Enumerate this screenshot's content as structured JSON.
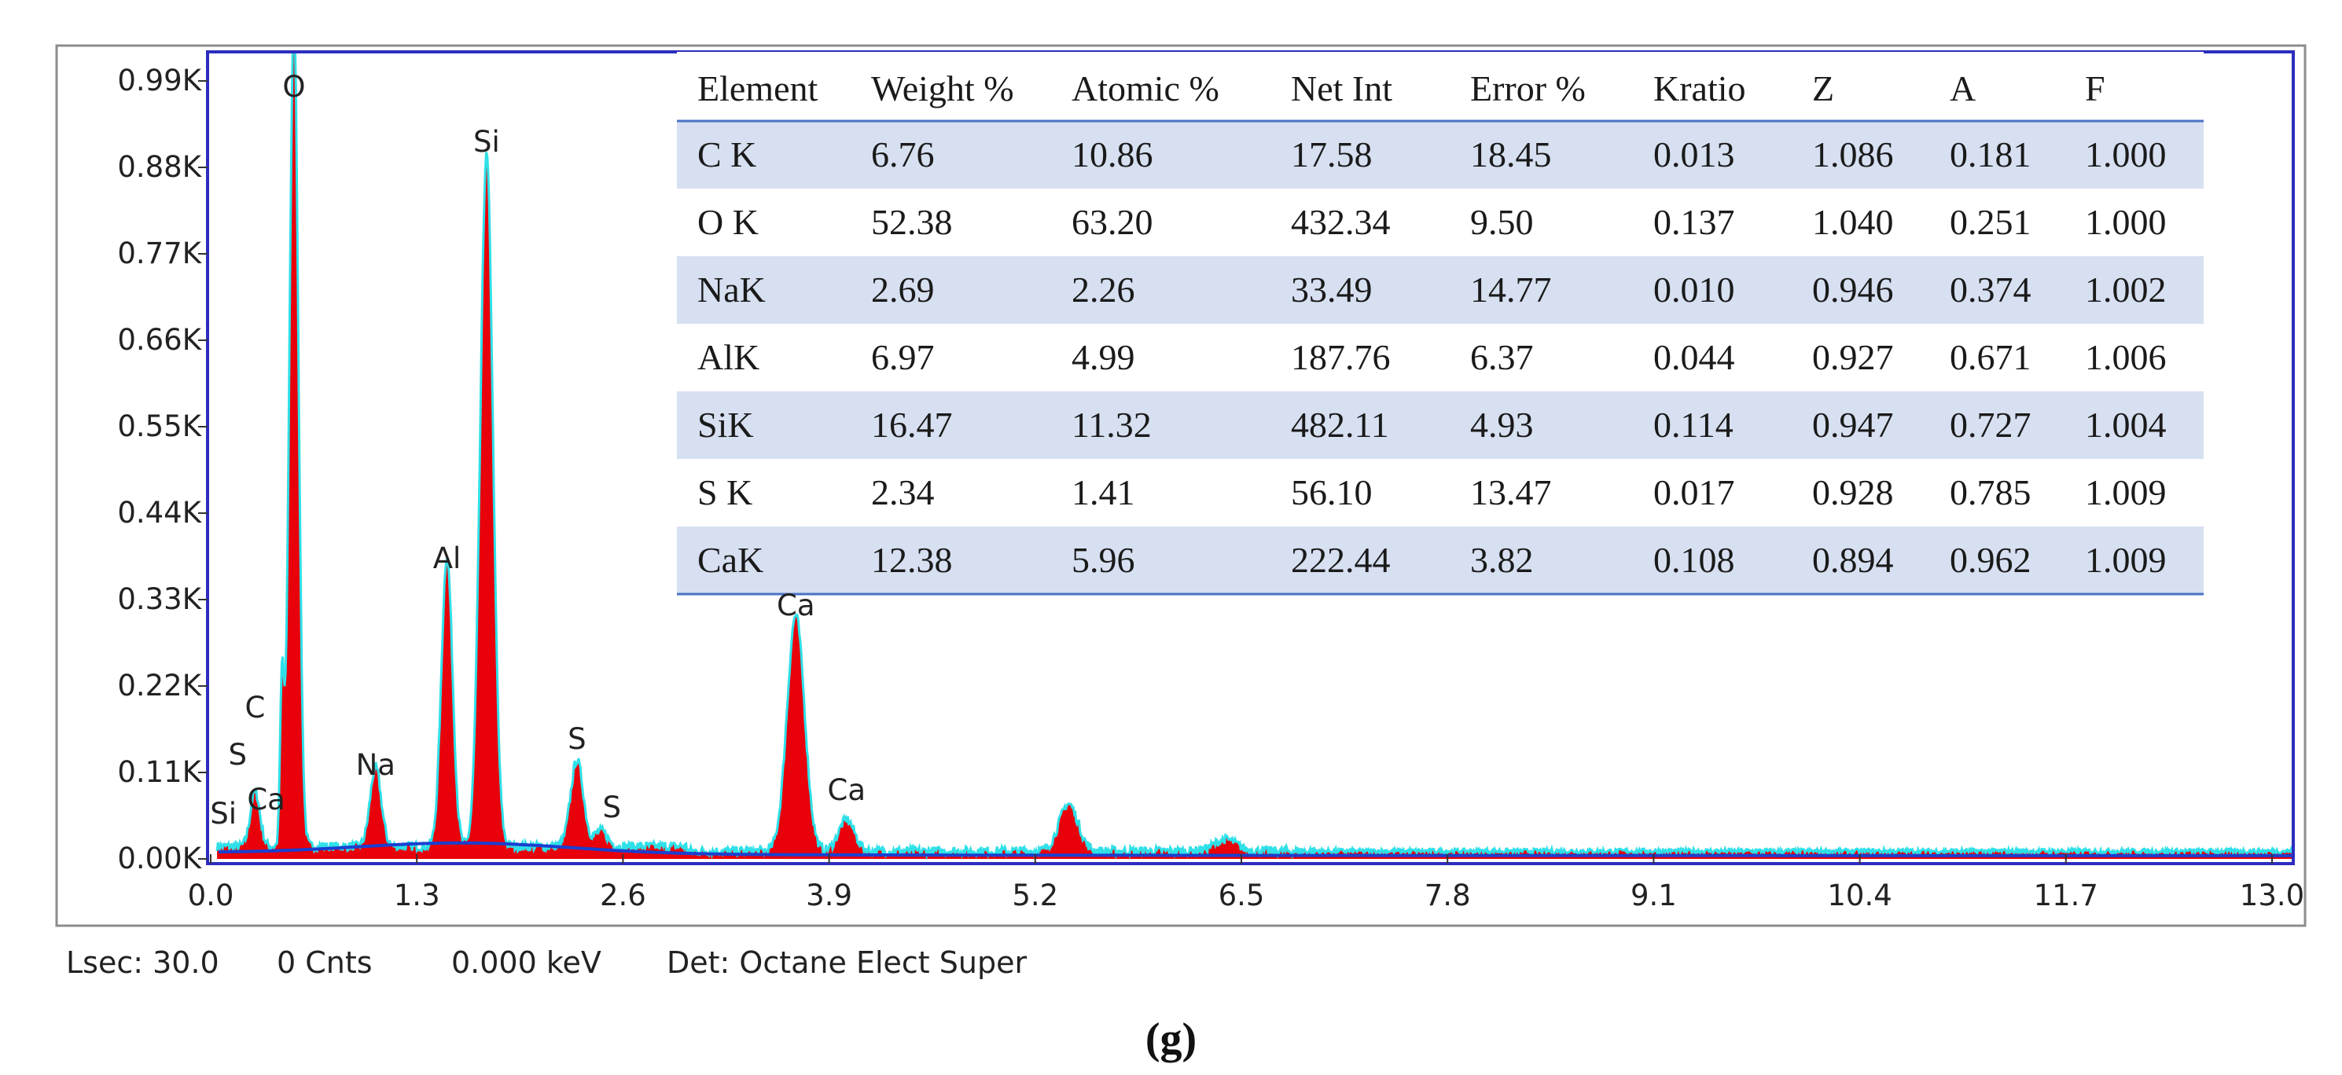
{
  "chart_data": {
    "type": "area",
    "title": "",
    "xlabel": "",
    "ylabel": "",
    "xlim": [
      0.0,
      13.3
    ],
    "ylim": [
      0,
      1.07
    ],
    "x_ticks": [
      0.0,
      1.3,
      2.6,
      3.9,
      5.2,
      6.5,
      7.8,
      9.1,
      10.4,
      11.7,
      13.0
    ],
    "x_tick_labels": [
      "0.0",
      "1.3",
      "2.6",
      "3.9",
      "5.2",
      "6.5",
      "7.8",
      "9.1",
      "10.4",
      "11.7",
      "13.0"
    ],
    "y_ticks": [
      0.0,
      0.11,
      0.22,
      0.33,
      0.44,
      0.55,
      0.66,
      0.77,
      0.88,
      0.99
    ],
    "y_tick_labels": [
      "0.00K",
      "0.11K",
      "0.22K",
      "0.33K",
      "0.44K",
      "0.55K",
      "0.66K",
      "0.77K",
      "0.88K",
      "0.99K"
    ],
    "background_level": 0.01,
    "peaks": [
      {
        "energy": 0.28,
        "height": 0.07,
        "width": 0.03
      },
      {
        "energy": 0.45,
        "height": 0.21,
        "width": 0.012
      },
      {
        "energy": 0.525,
        "height": 1.06,
        "width": 0.028
      },
      {
        "energy": 1.04,
        "height": 0.1,
        "width": 0.035
      },
      {
        "energy": 1.49,
        "height": 0.37,
        "width": 0.035
      },
      {
        "energy": 1.74,
        "height": 0.88,
        "width": 0.04
      },
      {
        "energy": 2.31,
        "height": 0.11,
        "width": 0.04
      },
      {
        "energy": 2.46,
        "height": 0.02,
        "width": 0.04
      },
      {
        "energy": 3.69,
        "height": 0.3,
        "width": 0.055
      },
      {
        "energy": 4.01,
        "height": 0.04,
        "width": 0.05
      },
      {
        "energy": 5.41,
        "height": 0.06,
        "width": 0.06
      },
      {
        "energy": 6.4,
        "height": 0.015,
        "width": 0.07
      }
    ],
    "peak_labels": [
      {
        "text": "O",
        "energy": 0.525,
        "y": 0.97
      },
      {
        "text": "Si",
        "energy": 1.74,
        "y": 0.9
      },
      {
        "text": "Al",
        "energy": 1.49,
        "y": 0.37
      },
      {
        "text": "Ca",
        "energy": 3.69,
        "y": 0.31
      },
      {
        "text": "C",
        "energy": 0.28,
        "y": 0.18
      },
      {
        "text": "S",
        "energy": 2.31,
        "y": 0.14
      },
      {
        "text": "S",
        "energy": 0.17,
        "y": 0.12
      },
      {
        "text": "Na",
        "energy": 1.04,
        "y": 0.107
      },
      {
        "text": "Ca",
        "energy": 4.01,
        "y": 0.075
      },
      {
        "text": "Ca",
        "energy": 0.35,
        "y": 0.063
      },
      {
        "text": "S",
        "energy": 2.53,
        "y": 0.053
      },
      {
        "text": "Si",
        "energy": 0.08,
        "y": 0.045
      }
    ],
    "table": {
      "headers": [
        "Element",
        "Weight %",
        "Atomic %",
        "Net Int",
        "Error %",
        "Kratio",
        "Z",
        "A",
        "F"
      ],
      "rows": [
        [
          "C K",
          "6.76",
          "10.86",
          "17.58",
          "18.45",
          "0.013",
          "1.086",
          "0.181",
          "1.000"
        ],
        [
          "O K",
          "52.38",
          "63.20",
          "432.34",
          "9.50",
          "0.137",
          "1.040",
          "0.251",
          "1.000"
        ],
        [
          "NaK",
          "2.69",
          "2.26",
          "33.49",
          "14.77",
          "0.010",
          "0.946",
          "0.374",
          "1.002"
        ],
        [
          "AlK",
          "6.97",
          "4.99",
          "187.76",
          "6.37",
          "0.044",
          "0.927",
          "0.671",
          "1.006"
        ],
        [
          "SiK",
          "16.47",
          "11.32",
          "482.11",
          "4.93",
          "0.114",
          "0.947",
          "0.727",
          "1.004"
        ],
        [
          "S K",
          "2.34",
          "1.41",
          "56.10",
          "13.47",
          "0.017",
          "0.928",
          "0.785",
          "1.009"
        ],
        [
          "CaK",
          "12.38",
          "5.96",
          "222.44",
          "3.82",
          "0.108",
          "0.894",
          "0.962",
          "1.009"
        ]
      ]
    },
    "colors": {
      "spectrum_fill": "#e8000a",
      "spectrum_outline": "#2fe0e8",
      "background_line": "#1a3fd0",
      "plot_border": "#2d2dbf",
      "table_stripe": "#d7e0f1",
      "table_rule": "#4a72c4"
    }
  },
  "status_bar": {
    "lsec": "Lsec: 30.0",
    "counts": "0 Cnts",
    "energy": "0.000 keV",
    "detector": "Det: Octane Elect Super"
  },
  "caption": "(g)"
}
